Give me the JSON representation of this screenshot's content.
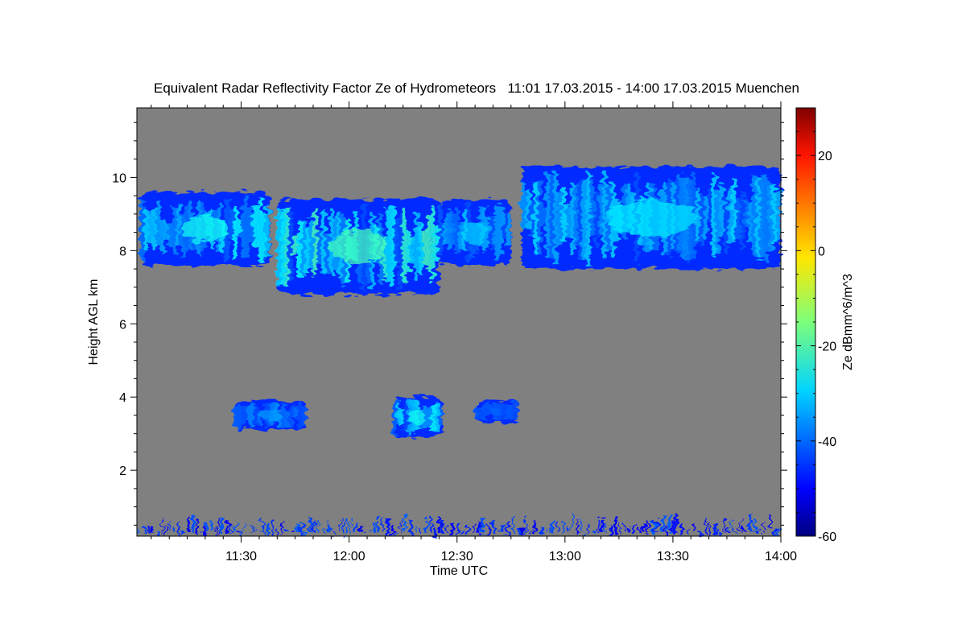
{
  "chart_data": {
    "type": "heatmap",
    "title": "Equivalent Radar Reflectivity Factor Ze of Hydrometeors   11:01 17.03.2015 - 14:00 17.03.2015 Muenchen",
    "xlabel": "Time UTC",
    "ylabel": "Height AGL km",
    "colorbar_label": "Ze dBmm^6/m^3",
    "x_range": [
      "11:01",
      "14:00"
    ],
    "x_ticks": [
      "11:30",
      "12:00",
      "12:30",
      "13:00",
      "13:30",
      "14:00"
    ],
    "ylim": [
      0.2,
      11.9
    ],
    "y_ticks": [
      "2",
      "4",
      "6",
      "8",
      "10"
    ],
    "colorbar_range": [
      -60,
      30
    ],
    "colorbar_ticks": [
      "20",
      "0",
      "-20",
      "-40",
      "-60"
    ],
    "colormap": "jet",
    "background_color": "#808080",
    "echo_regions": [
      {
        "name": "upper-cirrus-west",
        "time_start": "11:02",
        "time_end": "11:38",
        "base_km": 7.6,
        "top_km": 9.6,
        "ze_max_dbz": -25
      },
      {
        "name": "upper-cirrus-center",
        "time_start": "11:40",
        "time_end": "12:25",
        "base_km": 6.8,
        "top_km": 9.4,
        "ze_max_dbz": -20
      },
      {
        "name": "upper-cirrus-mid",
        "time_start": "12:25",
        "time_end": "12:45",
        "base_km": 7.6,
        "top_km": 9.4,
        "ze_max_dbz": -30
      },
      {
        "name": "upper-cirrus-east",
        "time_start": "12:48",
        "time_end": "14:00",
        "base_km": 7.5,
        "top_km": 10.3,
        "ze_max_dbz": -28
      },
      {
        "name": "low-cloud-1",
        "time_start": "11:28",
        "time_end": "11:48",
        "base_km": 3.1,
        "top_km": 3.9,
        "ze_max_dbz": -35
      },
      {
        "name": "low-cloud-2",
        "time_start": "12:12",
        "time_end": "12:26",
        "base_km": 2.9,
        "top_km": 4.0,
        "ze_max_dbz": -25
      },
      {
        "name": "low-cloud-3",
        "time_start": "12:35",
        "time_end": "12:47",
        "base_km": 3.3,
        "top_km": 3.9,
        "ze_max_dbz": -40
      },
      {
        "name": "surface-clutter",
        "time_start": "11:01",
        "time_end": "14:00",
        "base_km": 0.2,
        "top_km": 0.8,
        "ze_max_dbz": -45
      }
    ]
  }
}
